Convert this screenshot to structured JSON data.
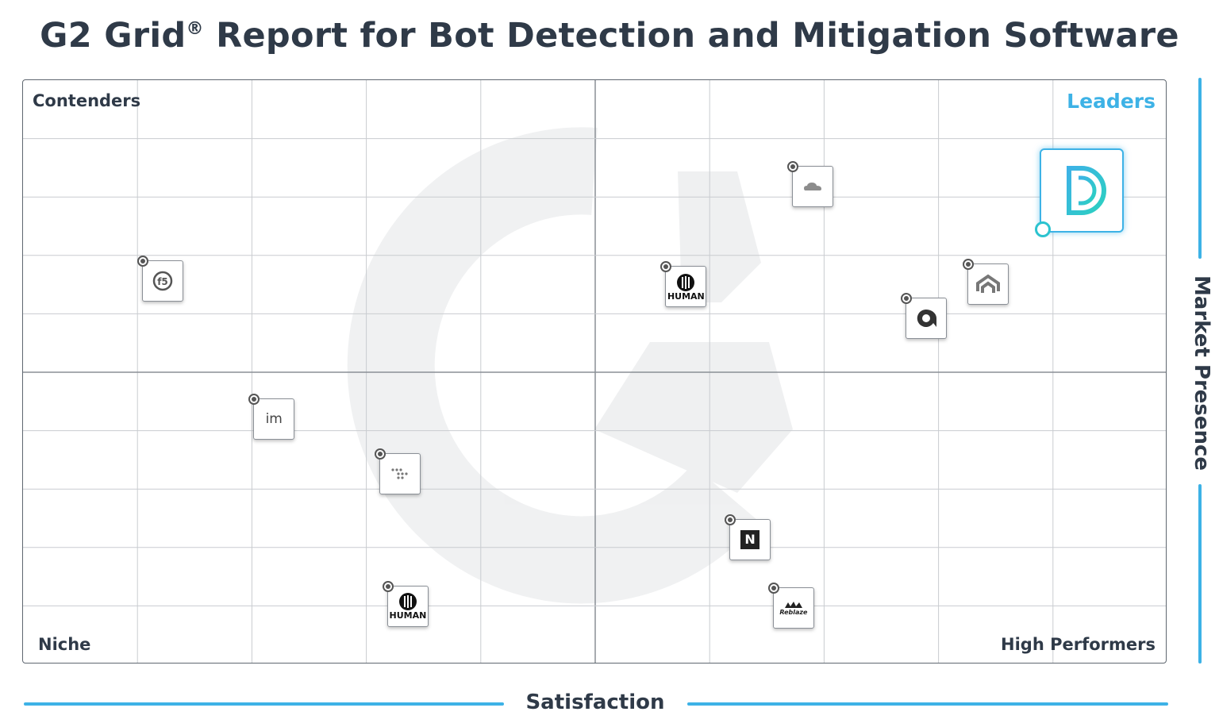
{
  "header": {
    "title": "G2 Grid",
    "title_mark": "®",
    "title_rest": "Report for Bot Detection and Mitigation Software"
  },
  "quadrants": {
    "top_left": "Contenders",
    "top_right": "Leaders",
    "bottom_left": "Niche",
    "bottom_right": "High Performers"
  },
  "axes": {
    "x_label": "Satisfaction",
    "y_label": "Market Presence"
  },
  "colors": {
    "accent": "#3db2e6",
    "featured_border": "#3db2e6",
    "featured_gradient": [
      "#3db2e6",
      "#2bd1c0"
    ],
    "text": "#2f3a48",
    "grid_line": "#c9ccd0",
    "quadrant_line": "#8a8f96"
  },
  "chart_data": {
    "type": "scatter",
    "xlabel": "Satisfaction",
    "ylabel": "Market Presence",
    "xlim": [
      0,
      100
    ],
    "ylim": [
      0,
      100
    ],
    "grid": true,
    "points": [
      {
        "name": "featured-d",
        "x": 92.6,
        "y": 81.0,
        "featured": true,
        "icon": "stylized-d-logo"
      },
      {
        "name": "cloudflare",
        "x": 69.1,
        "y": 81.6,
        "icon": "cloud-logo"
      },
      {
        "name": "human-upper",
        "x": 58.0,
        "y": 64.5,
        "label": "HUMAN",
        "icon": "barcode-circle-logo"
      },
      {
        "name": "akamai-like",
        "x": 84.4,
        "y": 64.9,
        "icon": "chevron-stack-logo"
      },
      {
        "name": "q-logo",
        "x": 79.0,
        "y": 59.1,
        "icon": "q-logo"
      },
      {
        "name": "f5",
        "x": 12.3,
        "y": 65.5,
        "icon": "f5-logo"
      },
      {
        "name": "imperva",
        "x": 22.0,
        "y": 41.8,
        "label": "im",
        "icon": "im-logo"
      },
      {
        "name": "dots-logo",
        "x": 33.0,
        "y": 32.5,
        "icon": "dots-logo"
      },
      {
        "name": "netacea",
        "x": 63.6,
        "y": 21.2,
        "label": "N",
        "icon": "n-logo"
      },
      {
        "name": "human-lower",
        "x": 33.7,
        "y": 9.8,
        "label": "HUMAN",
        "icon": "barcode-circle-logo"
      },
      {
        "name": "reblaze",
        "x": 67.4,
        "y": 9.5,
        "label": "Reblaze",
        "icon": "reblaze-logo"
      }
    ]
  }
}
